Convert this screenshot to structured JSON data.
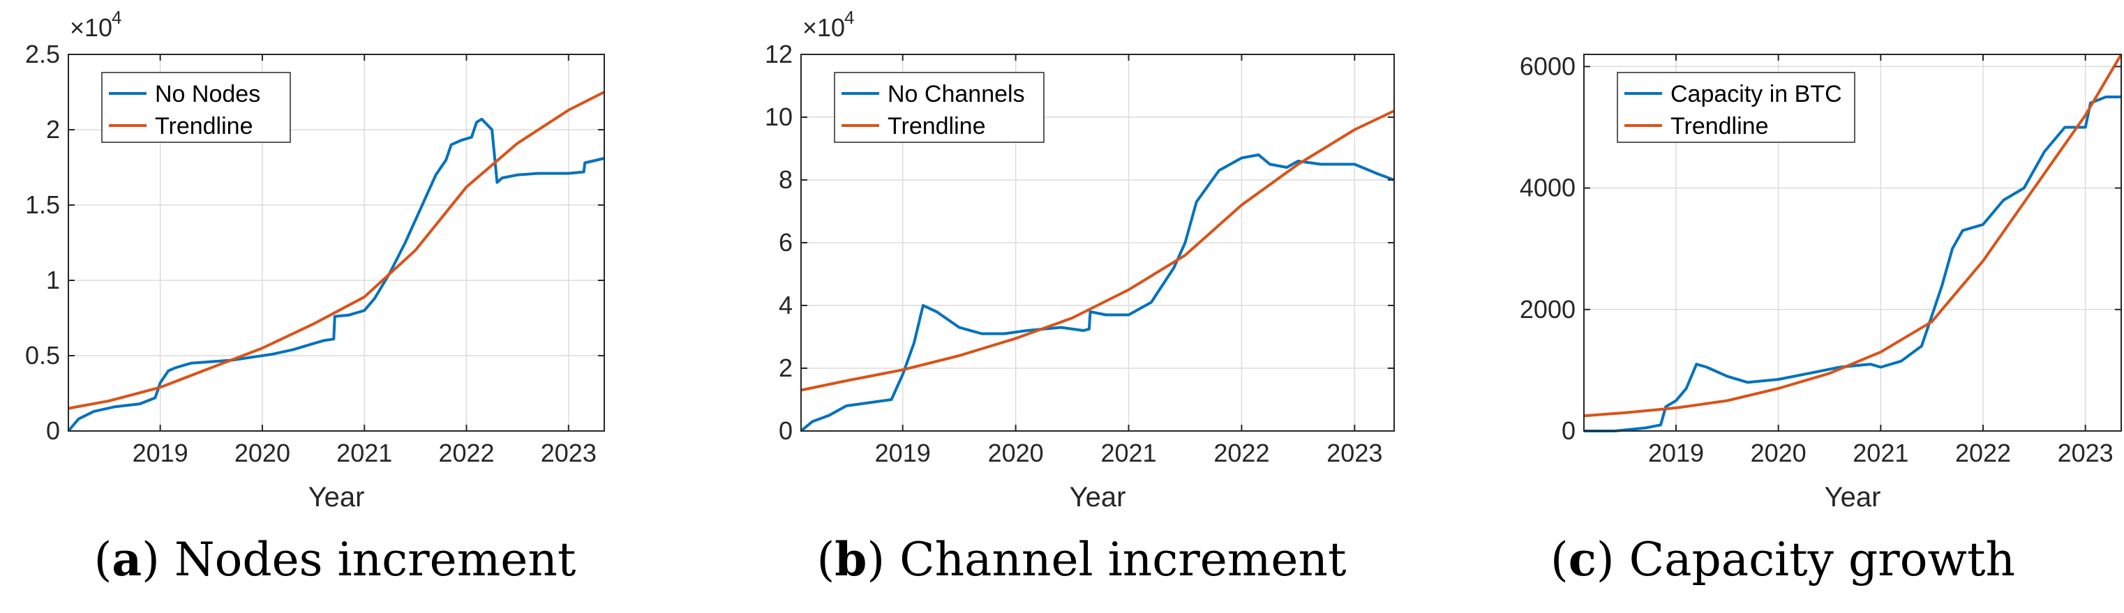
{
  "chart_data": [
    {
      "type": "line",
      "panel_letter": "a",
      "caption": "Nodes increment",
      "xlabel": "Year",
      "ylabel": "",
      "xlim": [
        2018.1,
        2023.35
      ],
      "ylim": [
        0,
        25000
      ],
      "x_ticks": [
        2019,
        2020,
        2021,
        2022,
        2023
      ],
      "x_tick_labels": [
        "2019",
        "2020",
        "2021",
        "2022",
        "2023"
      ],
      "y_ticks": [
        0,
        5000,
        10000,
        15000,
        20000,
        25000
      ],
      "y_tick_labels": [
        "0",
        "0.5",
        "1",
        "1.5",
        "2",
        "2.5"
      ],
      "exponent_base": "×10",
      "exponent_power": "4",
      "grid": true,
      "legend": "top-left",
      "series": [
        {
          "name": "No Nodes",
          "color": "#0072BD",
          "x": [
            2018.1,
            2018.2,
            2018.35,
            2018.55,
            2018.8,
            2018.95,
            2019.0,
            2019.08,
            2019.15,
            2019.3,
            2019.5,
            2019.7,
            2019.9,
            2020.1,
            2020.3,
            2020.5,
            2020.6,
            2020.7,
            2020.71,
            2020.85,
            2021.0,
            2021.1,
            2021.25,
            2021.4,
            2021.5,
            2021.6,
            2021.7,
            2021.8,
            2021.85,
            2021.95,
            2022.05,
            2022.1,
            2022.15,
            2022.25,
            2022.3,
            2022.35,
            2022.5,
            2022.7,
            2022.9,
            2023.0,
            2023.15,
            2023.16,
            2023.35
          ],
          "y": [
            0,
            800,
            1300,
            1600,
            1800,
            2200,
            3200,
            4000,
            4200,
            4500,
            4600,
            4700,
            4900,
            5100,
            5400,
            5800,
            6000,
            6100,
            7600,
            7700,
            8000,
            8800,
            10500,
            12500,
            14000,
            15500,
            17000,
            18000,
            19000,
            19300,
            19500,
            20500,
            20700,
            20000,
            16500,
            16800,
            17000,
            17100,
            17100,
            17100,
            17200,
            17800,
            18100
          ]
        },
        {
          "name": "Trendline",
          "color": "#D95319",
          "x": [
            2018.1,
            2018.5,
            2019.0,
            2019.5,
            2020.0,
            2020.5,
            2021.0,
            2021.5,
            2022.0,
            2022.5,
            2023.0,
            2023.35
          ],
          "y": [
            1500,
            2000,
            2900,
            4200,
            5500,
            7100,
            8900,
            12000,
            16200,
            19100,
            21300,
            22500
          ]
        }
      ]
    },
    {
      "type": "line",
      "panel_letter": "b",
      "caption": "Channel increment",
      "xlabel": "Year",
      "ylabel": "",
      "xlim": [
        2018.1,
        2023.35
      ],
      "ylim": [
        0,
        120000
      ],
      "x_ticks": [
        2019,
        2020,
        2021,
        2022,
        2023
      ],
      "x_tick_labels": [
        "2019",
        "2020",
        "2021",
        "2022",
        "2023"
      ],
      "y_ticks": [
        0,
        20000,
        40000,
        60000,
        80000,
        100000,
        120000
      ],
      "y_tick_labels": [
        "0",
        "2",
        "4",
        "6",
        "8",
        "10",
        "12"
      ],
      "exponent_base": "×10",
      "exponent_power": "4",
      "grid": true,
      "legend": "top-left",
      "series": [
        {
          "name": "No Channels",
          "color": "#0072BD",
          "x": [
            2018.1,
            2018.2,
            2018.35,
            2018.5,
            2018.7,
            2018.9,
            2019.0,
            2019.1,
            2019.18,
            2019.3,
            2019.5,
            2019.7,
            2019.9,
            2020.1,
            2020.4,
            2020.6,
            2020.65,
            2020.66,
            2020.8,
            2021.0,
            2021.2,
            2021.4,
            2021.5,
            2021.6,
            2021.8,
            2022.0,
            2022.15,
            2022.25,
            2022.4,
            2022.5,
            2022.7,
            2022.9,
            2023.0,
            2023.2,
            2023.35
          ],
          "y": [
            0,
            3000,
            5000,
            8000,
            9000,
            10000,
            18000,
            28000,
            40000,
            38000,
            33000,
            31000,
            31000,
            32000,
            33000,
            32000,
            32500,
            38000,
            37000,
            37000,
            41000,
            52000,
            60000,
            73000,
            83000,
            87000,
            88000,
            85000,
            84000,
            86000,
            85000,
            85000,
            85000,
            82000,
            80000
          ]
        },
        {
          "name": "Trendline",
          "color": "#D95319",
          "x": [
            2018.1,
            2018.5,
            2019.0,
            2019.5,
            2020.0,
            2020.5,
            2021.0,
            2021.5,
            2022.0,
            2022.5,
            2023.0,
            2023.35
          ],
          "y": [
            13000,
            16000,
            19500,
            24000,
            29500,
            36000,
            45000,
            56000,
            72000,
            85000,
            96000,
            102000
          ]
        }
      ]
    },
    {
      "type": "line",
      "panel_letter": "c",
      "caption": "Capacity growth",
      "xlabel": "Year",
      "ylabel": "",
      "xlim": [
        2018.1,
        2023.35
      ],
      "ylim": [
        0,
        6200
      ],
      "x_ticks": [
        2019,
        2020,
        2021,
        2022,
        2023
      ],
      "x_tick_labels": [
        "2019",
        "2020",
        "2021",
        "2022",
        "2023"
      ],
      "y_ticks": [
        0,
        2000,
        4000,
        6000
      ],
      "y_tick_labels": [
        "0",
        "2000",
        "4000",
        "6000"
      ],
      "exponent_base": "",
      "exponent_power": "",
      "grid": true,
      "legend": "top-left",
      "series": [
        {
          "name": "Capacity in BTC",
          "color": "#0072BD",
          "x": [
            2018.1,
            2018.4,
            2018.7,
            2018.85,
            2018.9,
            2019.0,
            2019.1,
            2019.2,
            2019.3,
            2019.5,
            2019.7,
            2020.0,
            2020.3,
            2020.6,
            2020.9,
            2021.0,
            2021.2,
            2021.4,
            2021.5,
            2021.6,
            2021.7,
            2021.8,
            2022.0,
            2022.2,
            2022.4,
            2022.6,
            2022.8,
            2022.9,
            2023.0,
            2023.05,
            2023.2,
            2023.35
          ],
          "y": [
            0,
            0,
            50,
            100,
            400,
            500,
            700,
            1100,
            1050,
            900,
            800,
            850,
            950,
            1050,
            1100,
            1050,
            1150,
            1400,
            1900,
            2400,
            3000,
            3300,
            3400,
            3800,
            4000,
            4600,
            5000,
            5000,
            5000,
            5400,
            5500,
            5500
          ]
        },
        {
          "name": "Trendline",
          "color": "#D95319",
          "x": [
            2018.1,
            2018.5,
            2019.0,
            2019.5,
            2020.0,
            2020.5,
            2021.0,
            2021.5,
            2022.0,
            2022.5,
            2023.0,
            2023.35
          ],
          "y": [
            250,
            300,
            380,
            500,
            700,
            950,
            1300,
            1800,
            2800,
            4000,
            5200,
            6200
          ]
        }
      ]
    }
  ]
}
